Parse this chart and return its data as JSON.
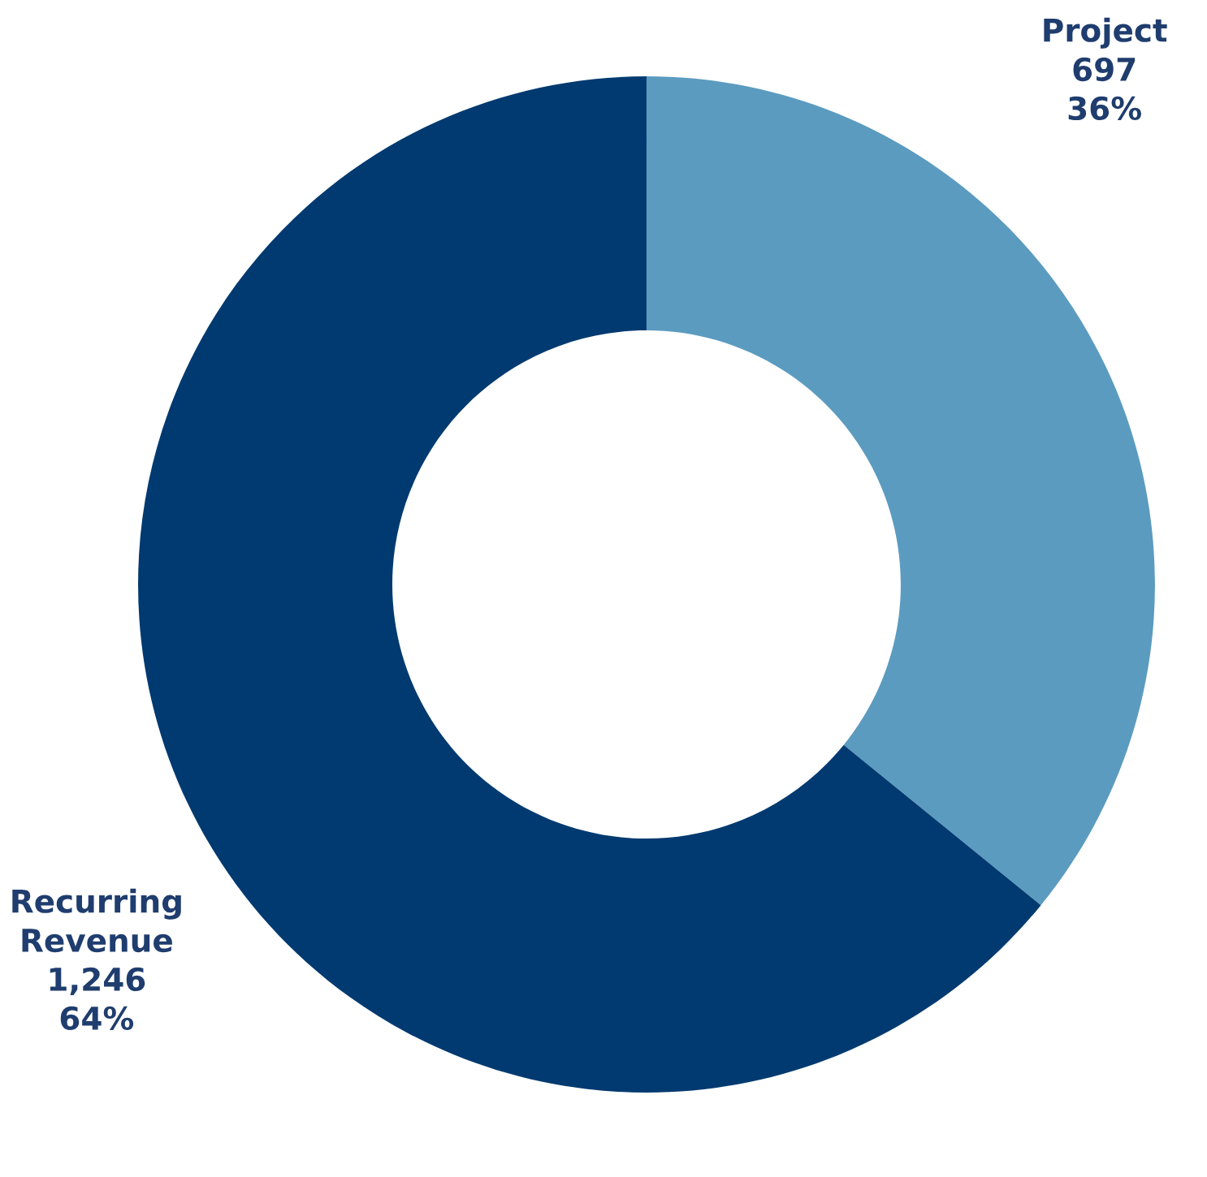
{
  "chart_data": {
    "type": "donut",
    "categories": [
      "Project",
      "Recurring Revenue"
    ],
    "values": [
      697,
      1246
    ],
    "colors": [
      "#5b9bc0",
      "#003a70"
    ],
    "value_labels": [
      "697\n36%",
      "1,246\n64%"
    ],
    "legend": false
  }
}
